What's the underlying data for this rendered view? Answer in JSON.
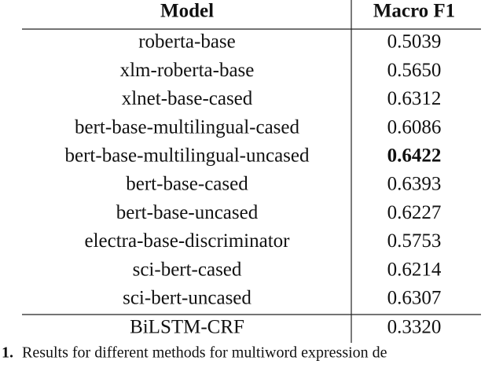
{
  "table": {
    "header": [
      "Model",
      "Macro F1"
    ],
    "rows": [
      [
        "roberta-base",
        "0.5039"
      ],
      [
        "xlm-roberta-base",
        "0.5650"
      ],
      [
        "xlnet-base-cased",
        "0.6312"
      ],
      [
        "bert-base-multilingual-cased",
        "0.6086"
      ],
      [
        "bert-base-multilingual-uncased",
        "0.6422"
      ],
      [
        "bert-base-cased",
        "0.6393"
      ],
      [
        "bert-base-uncased",
        "0.6227"
      ],
      [
        "electra-base-discriminator",
        "0.5753"
      ],
      [
        "sci-bert-cased",
        "0.6214"
      ],
      [
        "sci-bert-uncased",
        "0.6307"
      ]
    ],
    "baseline_rows": [
      [
        "BiLSTM-CRF",
        "0.3320"
      ]
    ],
    "highlight": {
      "row": 4,
      "column": 1
    }
  },
  "caption": {
    "label": "1.",
    "text": "Results for different methods for multiword expression de"
  }
}
